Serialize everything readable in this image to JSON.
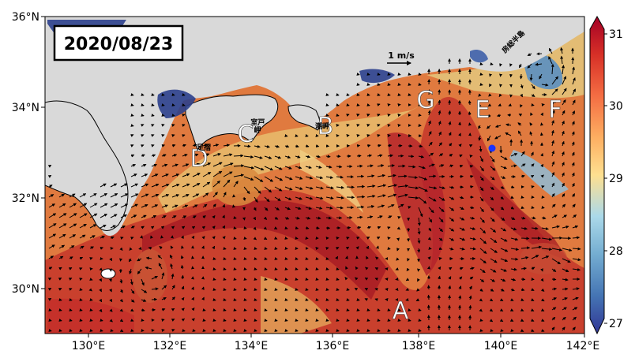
{
  "title_date": "2020/08/23",
  "scale_label": "1 m/s",
  "lat_ticks": [
    "36°N",
    "34°N",
    "32°N",
    "30°N"
  ],
  "lon_ticks": [
    "130°E",
    "132°E",
    "134°E",
    "136°E",
    "138°E",
    "140°E",
    "142°E"
  ],
  "colorbar": {
    "ticks": [
      "31",
      "30",
      "29",
      "28",
      "27"
    ],
    "min": 27,
    "max": 31
  },
  "regions": [
    "A",
    "B",
    "C",
    "D",
    "E",
    "F",
    "G"
  ],
  "place_labels": {
    "muroto": "室戸\n岬",
    "shiono": "潮岬",
    "boso": "房総半島",
    "ashizuri": "足摺"
  },
  "colors": {
    "land": "#d9d9d9",
    "warm": "#b2182b",
    "cool": "#313695",
    "marker": "#1a33ff"
  }
}
